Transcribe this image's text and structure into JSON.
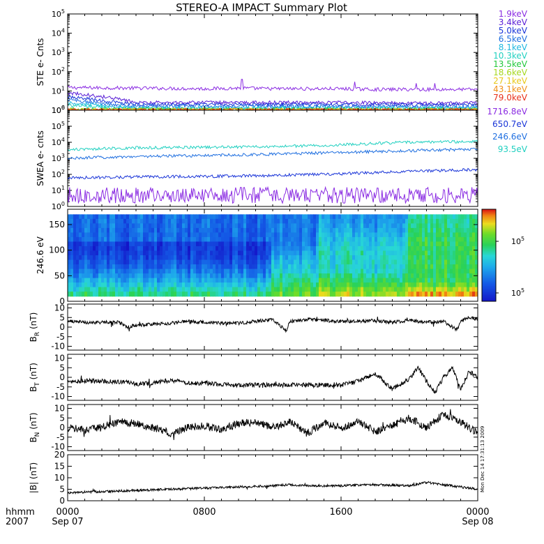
{
  "title": "STEREO-A IMPACT Summary Plot",
  "x_axis": {
    "row1_label": "hhmm",
    "row2_label": "2007",
    "ticks": [
      {
        "t": 0,
        "top": "0000",
        "bottom": "Sep 07"
      },
      {
        "t": 8,
        "top": "0800",
        "bottom": ""
      },
      {
        "t": 16,
        "top": "1600",
        "bottom": ""
      },
      {
        "t": 24,
        "top": "0000",
        "bottom": "Sep 08"
      }
    ],
    "range_hours": [
      0,
      24
    ]
  },
  "side_stamp": "Mon Dec 14 17:31:13 2009",
  "colors": {
    "axis": "#000000",
    "background": "#ffffff"
  },
  "chart_data": [
    {
      "type": "line",
      "panel": "ste",
      "ylabel": "STE e- Cnts",
      "yscale": "log",
      "ylim": [
        1,
        100000
      ],
      "ytick_labels": [
        "10^0",
        "10^1",
        "10^2",
        "10^3",
        "10^4",
        "10^5"
      ],
      "legend_placement": "right",
      "series": [
        {
          "name": "1.9keV",
          "color": "#8a2be2",
          "x_hours": [
            0,
            4,
            8,
            10,
            12,
            16,
            18,
            20,
            24
          ],
          "values": [
            15,
            14,
            13,
            14,
            13,
            13,
            12,
            12,
            12
          ],
          "spikes_x_hours": [
            10.2,
            16.8,
            20.4,
            21.5
          ],
          "spike_values": [
            40,
            30,
            25,
            25
          ]
        },
        {
          "name": "3.4keV",
          "color": "#5a1fd6",
          "x_hours": [
            0,
            2,
            4,
            8,
            12,
            16,
            20,
            24
          ],
          "values": [
            8,
            5,
            2.5,
            2.5,
            2.5,
            2.5,
            2.3,
            2.3
          ]
        },
        {
          "name": "5.0keV",
          "color": "#1a35d8",
          "x_hours": [
            0,
            2,
            4,
            8,
            12,
            16,
            20,
            24
          ],
          "values": [
            5,
            3,
            2,
            2,
            2,
            2,
            1.9,
            1.9
          ]
        },
        {
          "name": "6.5keV",
          "color": "#1f6fe0",
          "x_hours": [
            0,
            2,
            4,
            8,
            12,
            16,
            20,
            24
          ],
          "values": [
            3.5,
            2.2,
            1.6,
            1.6,
            1.6,
            1.6,
            1.5,
            1.5
          ]
        },
        {
          "name": "8.1keV",
          "color": "#1fb8e0",
          "x_hours": [
            0,
            2,
            4,
            8,
            12,
            16,
            20,
            24
          ],
          "values": [
            2.5,
            1.7,
            1.3,
            1.3,
            1.3,
            1.3,
            1.3,
            1.3
          ]
        },
        {
          "name": "10.3keV",
          "color": "#20d0c0",
          "x_hours": [
            0,
            2,
            4,
            8,
            12,
            16,
            20,
            24
          ],
          "values": [
            1.8,
            1.4,
            1.2,
            1.2,
            1.2,
            1.2,
            1.2,
            1.2
          ]
        },
        {
          "name": "13.5keV",
          "color": "#22c83a",
          "x_hours": [
            0,
            24
          ],
          "values": [
            1.1,
            1.1
          ]
        },
        {
          "name": "18.6keV",
          "color": "#a6d81e",
          "x_hours": [
            0,
            24
          ],
          "values": [
            1.05,
            1.05
          ]
        },
        {
          "name": "27.1keV",
          "color": "#e8c81a",
          "x_hours": [
            0,
            24
          ],
          "values": [
            1.03,
            1.03
          ]
        },
        {
          "name": "43.1keV",
          "color": "#f09018",
          "x_hours": [
            0,
            24
          ],
          "values": [
            1.02,
            1.02
          ]
        },
        {
          "name": "79.0keV",
          "color": "#e8301a",
          "x_hours": [
            0,
            24
          ],
          "values": [
            1.01,
            1.01
          ]
        }
      ]
    },
    {
      "type": "line",
      "panel": "swea",
      "ylabel": "SWEA e- cnts",
      "yscale": "log",
      "ylim": [
        1,
        1000000
      ],
      "ytick_labels": [
        "10^0",
        "10^1",
        "10^2",
        "10^3",
        "10^4",
        "10^5",
        "10^6"
      ],
      "legend_placement": "right",
      "series": [
        {
          "name": "1716.8eV",
          "color": "#8a2be2",
          "x_hours": [
            0,
            6,
            12,
            18,
            24
          ],
          "values": [
            5,
            5,
            5,
            5,
            5
          ],
          "noise_decades": 0.5
        },
        {
          "name": "650.7eV",
          "color": "#1a35d8",
          "x_hours": [
            0,
            4,
            8,
            12,
            16,
            20,
            24
          ],
          "values": [
            60,
            70,
            75,
            85,
            110,
            150,
            200
          ]
        },
        {
          "name": "246.6eV",
          "color": "#1f6fe0",
          "x_hours": [
            0,
            4,
            8,
            12,
            16,
            20,
            24
          ],
          "values": [
            1000,
            1300,
            1500,
            1800,
            2300,
            3000,
            3700
          ]
        },
        {
          "name": "93.5eV",
          "color": "#20d0c0",
          "x_hours": [
            0,
            4,
            8,
            12,
            16,
            20,
            24
          ],
          "values": [
            3500,
            4500,
            5000,
            5200,
            7000,
            10000,
            11000
          ]
        }
      ]
    },
    {
      "type": "heatmap",
      "panel": "pad",
      "ylabel": "246.6 eV",
      "ylim": [
        0,
        180
      ],
      "yticks": [
        0,
        50,
        100,
        150
      ],
      "colorbar_labels": [
        "10^5",
        "10^5"
      ],
      "note": "pitch-angle distribution; blue = low flux, red = high flux"
    },
    {
      "type": "line",
      "panel": "br",
      "ylabel": "B_R (nT)",
      "ylabel_main": "B",
      "ylabel_sub": "R",
      "ylabel_unit": "(nT)",
      "ylim": [
        -12,
        12
      ],
      "yticks": [
        -10,
        -5,
        0,
        5,
        10
      ],
      "x_hours": [
        0,
        1,
        2,
        3,
        3.5,
        4,
        5,
        6,
        7,
        8,
        9,
        10,
        11,
        12,
        12.8,
        13,
        14,
        15,
        16,
        17,
        18,
        19,
        20,
        21,
        22,
        22.8,
        23,
        23.5,
        24
      ],
      "values": [
        3,
        2.5,
        2.5,
        2.5,
        0,
        1,
        1.5,
        2,
        3,
        2.5,
        2,
        2,
        3,
        4,
        -2,
        3,
        4,
        3.5,
        3,
        3,
        3.5,
        2.5,
        3.5,
        2.5,
        3,
        -1.5,
        3,
        5,
        4
      ],
      "noise": 0.9
    },
    {
      "type": "line",
      "panel": "bt",
      "ylabel": "B_T (nT)",
      "ylabel_main": "B",
      "ylabel_sub": "T",
      "ylabel_unit": "(nT)",
      "ylim": [
        -12,
        12
      ],
      "yticks": [
        -10,
        -5,
        0,
        5,
        10
      ],
      "x_hours": [
        0,
        2,
        3.5,
        4,
        5,
        6,
        7,
        8,
        10,
        12,
        14,
        16,
        17,
        17.5,
        18,
        18.5,
        19,
        20,
        20.5,
        21,
        21.5,
        22,
        22.5,
        23,
        23.5,
        24
      ],
      "values": [
        -2,
        -2,
        -2.5,
        -3.5,
        -3,
        -1.5,
        -3,
        -3,
        -4,
        -4,
        -4,
        -4,
        -2,
        0,
        2,
        -2,
        -6,
        -1,
        5,
        -2,
        -8,
        0,
        5,
        -6,
        3,
        0
      ],
      "noise": 1.2
    },
    {
      "type": "line",
      "panel": "bn",
      "ylabel": "B_N (nT)",
      "ylabel_main": "B",
      "ylabel_sub": "N",
      "ylabel_unit": "(nT)",
      "ylim": [
        -12,
        12
      ],
      "yticks": [
        -10,
        -5,
        0,
        5,
        10
      ],
      "x_hours": [
        0,
        1,
        2,
        3,
        4,
        5,
        6,
        7,
        8,
        9,
        10,
        11,
        12,
        13,
        14,
        15,
        16,
        17,
        18,
        19,
        20,
        21,
        22,
        23,
        24
      ],
      "values": [
        0,
        -1,
        0,
        3,
        2,
        0,
        -3,
        0,
        1,
        -1,
        2,
        3,
        0,
        3,
        -3,
        2,
        0,
        3,
        -2,
        1,
        5,
        0,
        7,
        3,
        -3
      ],
      "noise": 2.0
    },
    {
      "type": "line",
      "panel": "bmag",
      "ylabel": "|B| (nT)",
      "ylabel_main": "|B|",
      "ylabel_unit": "(nT)",
      "ylim": [
        0,
        20
      ],
      "yticks": [
        0,
        5,
        10,
        15,
        20
      ],
      "x_hours": [
        0,
        2,
        4,
        6,
        8,
        10,
        12,
        13,
        14,
        16,
        18,
        20,
        21,
        22,
        23,
        24
      ],
      "values": [
        3.5,
        4,
        4.5,
        5,
        5.5,
        6,
        6.5,
        7,
        6.5,
        6.5,
        7,
        6.5,
        8,
        7,
        6,
        5
      ],
      "noise": 0.5
    }
  ]
}
